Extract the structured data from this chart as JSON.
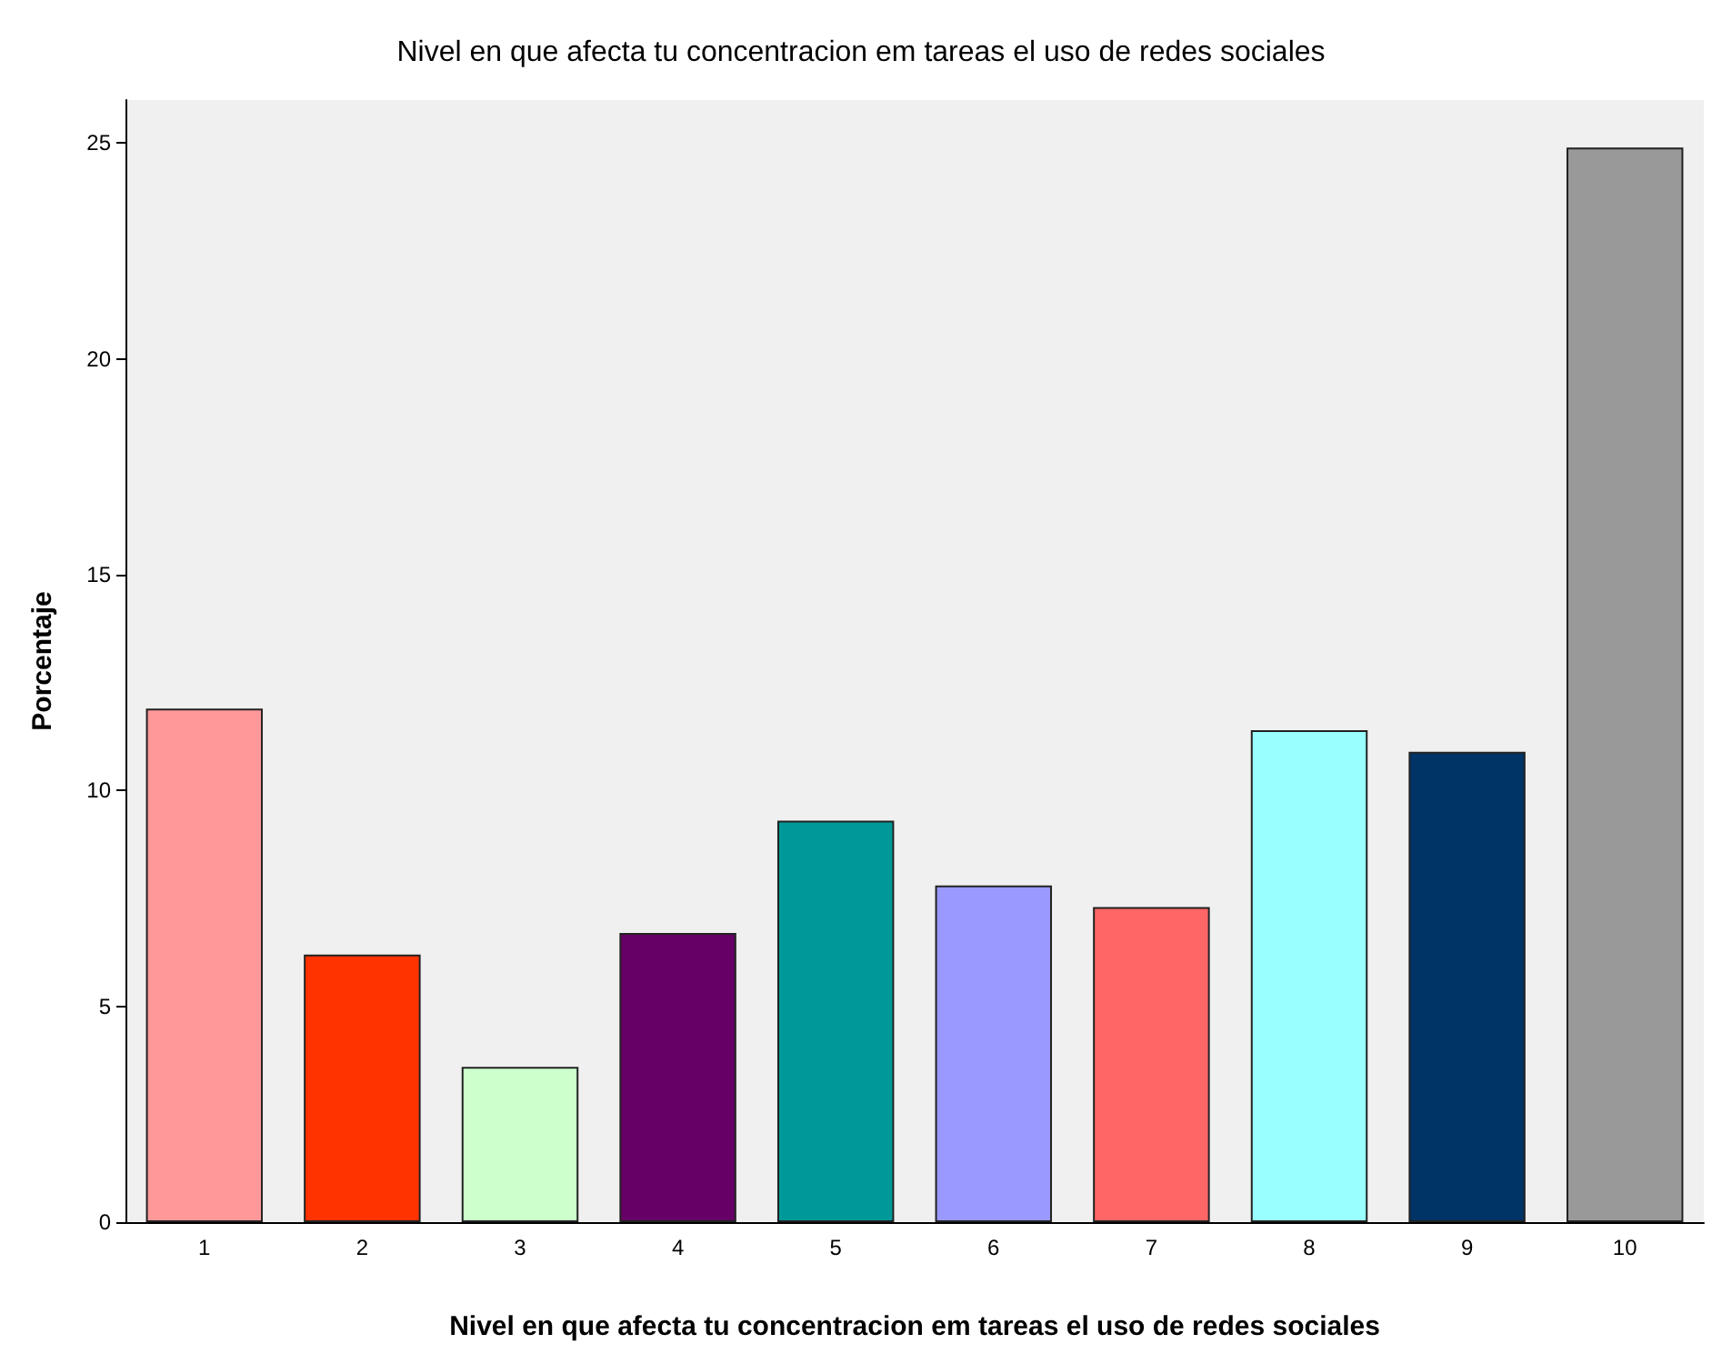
{
  "chart_data": {
    "type": "bar",
    "title": "Nivel en que afecta tu concentracion em tareas el uso de redes sociales",
    "xlabel": "Nivel en que afecta tu concentracion em tareas el uso de redes sociales",
    "ylabel": "Porcentaje",
    "categories": [
      "1",
      "2",
      "3",
      "4",
      "5",
      "6",
      "7",
      "8",
      "9",
      "10"
    ],
    "values": [
      11.9,
      6.2,
      3.6,
      6.7,
      9.3,
      7.8,
      7.3,
      11.4,
      10.9,
      24.9
    ],
    "colors": [
      "#ff9999",
      "#ff3300",
      "#ccffcc",
      "#660066",
      "#009999",
      "#9999ff",
      "#ff6666",
      "#99ffff",
      "#003366",
      "#999999"
    ],
    "ylim": [
      0,
      26
    ],
    "yticks": [
      0,
      5,
      10,
      15,
      20,
      25
    ],
    "grid": false
  }
}
